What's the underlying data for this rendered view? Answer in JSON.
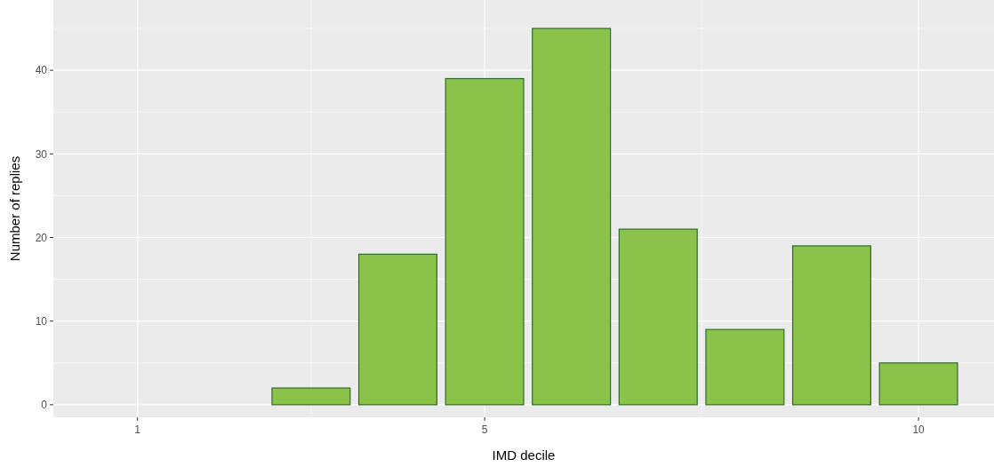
{
  "chart_data": {
    "type": "bar",
    "xlabel": "IMD decile",
    "ylabel": "Number of replies",
    "x": [
      3,
      4,
      5,
      6,
      7,
      8,
      9,
      10
    ],
    "values": [
      2,
      18,
      39,
      45,
      21,
      9,
      19,
      5
    ],
    "color": "#8bc34a",
    "xlim": [
      0.03,
      10.87
    ],
    "xticks": [
      1,
      5,
      10
    ],
    "ylim": [
      -1.5,
      48.4
    ],
    "yticks": [
      0,
      10,
      20,
      30,
      40
    ],
    "grid": true
  }
}
